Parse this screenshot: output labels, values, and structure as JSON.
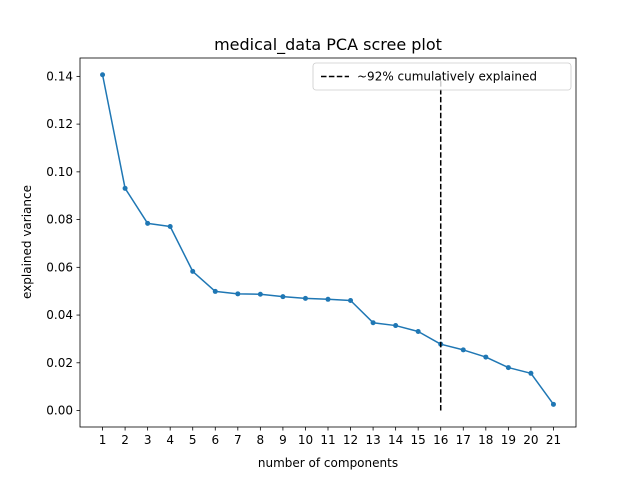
{
  "chart_data": {
    "type": "line",
    "title": "medical_data PCA scree plot",
    "xlabel": "number of components",
    "ylabel": "explained variance",
    "x": [
      1,
      2,
      3,
      4,
      5,
      6,
      7,
      8,
      9,
      10,
      11,
      12,
      13,
      14,
      15,
      16,
      17,
      18,
      19,
      20,
      21
    ],
    "series": [
      {
        "values": [
          0.1407,
          0.0931,
          0.0784,
          0.0771,
          0.0583,
          0.0499,
          0.0489,
          0.0487,
          0.0477,
          0.047,
          0.0466,
          0.0461,
          0.0368,
          0.0356,
          0.0331,
          0.0278,
          0.0254,
          0.0224,
          0.018,
          0.0156,
          0.0026
        ],
        "color": "#1f77b4"
      }
    ],
    "vline": {
      "x": 16,
      "ymin": 0,
      "ymax": 0.14,
      "color": "#000000",
      "style": "dashed",
      "label": "~92% cumulatively explained"
    },
    "xticks": [
      1,
      2,
      3,
      4,
      5,
      6,
      7,
      8,
      9,
      10,
      11,
      12,
      13,
      14,
      15,
      16,
      17,
      18,
      19,
      20,
      21
    ],
    "yticks": [
      0.0,
      0.02,
      0.04,
      0.06,
      0.08,
      0.1,
      0.12,
      0.14
    ],
    "ytick_labels": [
      "0.00",
      "0.02",
      "0.04",
      "0.06",
      "0.08",
      "0.10",
      "0.12",
      "0.14"
    ],
    "xlim": [
      0,
      22
    ],
    "ylim": [
      -0.0069,
      0.1477
    ],
    "grid": false,
    "legend_position": "top-right"
  }
}
